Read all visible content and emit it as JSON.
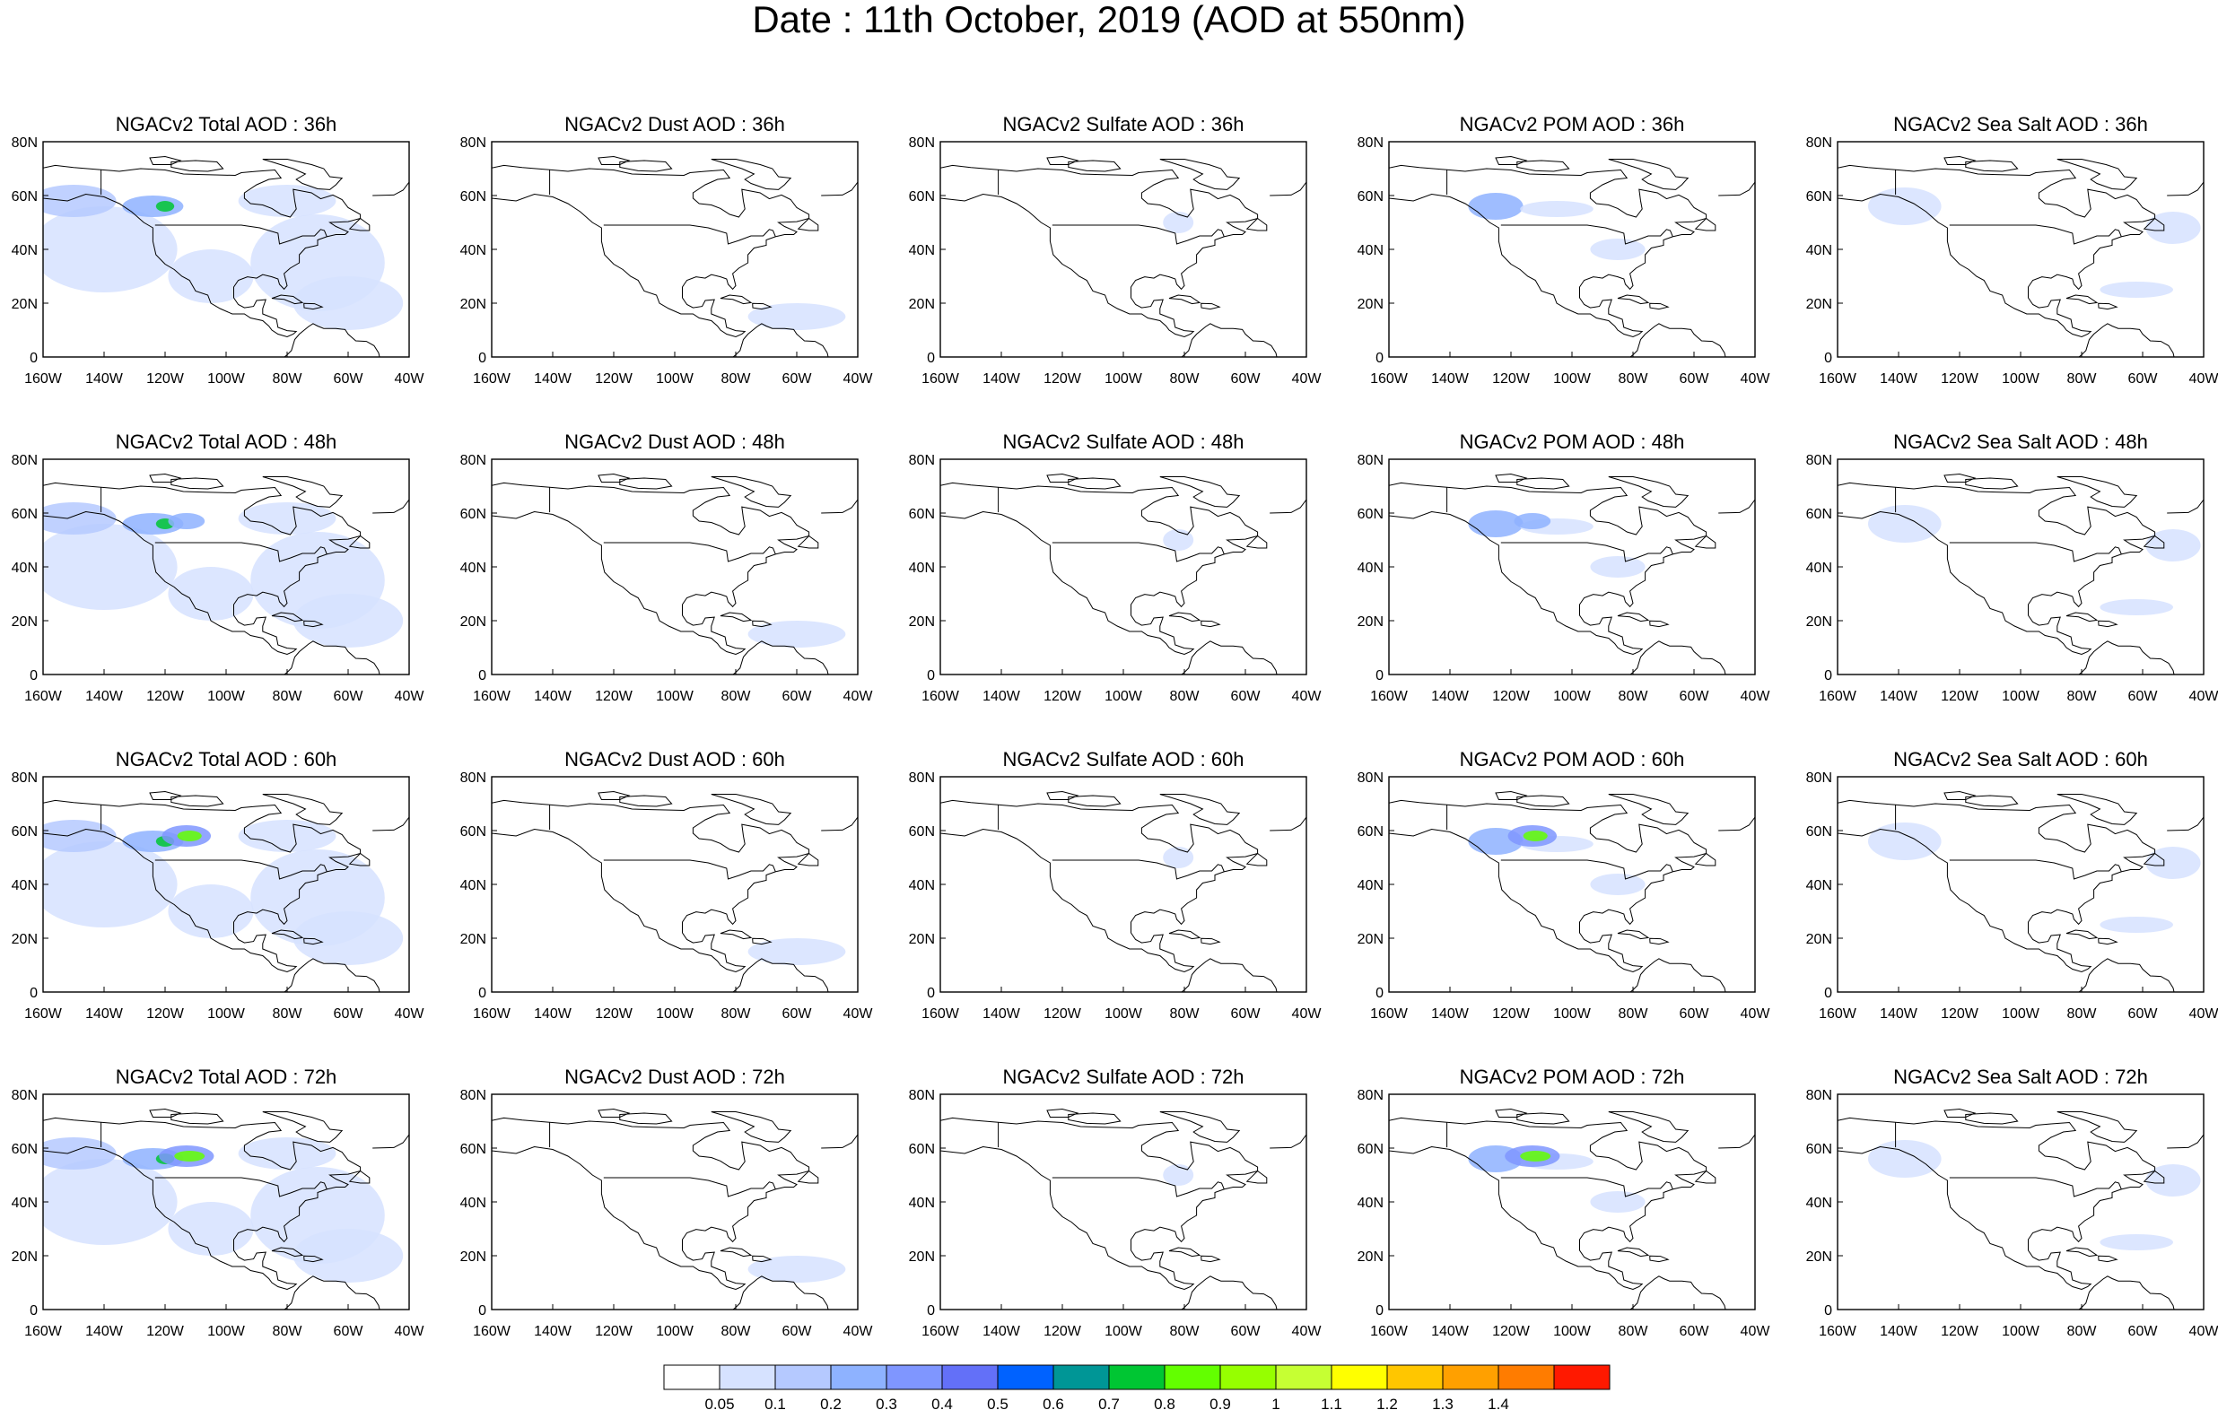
{
  "title": "Date : 11th October, 2019 (AOD at 550nm)",
  "panels": {
    "titles": [
      [
        "NGACv2 Total AOD : 36h",
        "NGACv2 Dust AOD : 36h",
        "NGACv2 Sulfate AOD : 36h",
        "NGACv2 POM AOD : 36h",
        "NGACv2 Sea Salt AOD : 36h"
      ],
      [
        "NGACv2 Total AOD : 48h",
        "NGACv2 Dust AOD : 48h",
        "NGACv2 Sulfate AOD : 48h",
        "NGACv2 POM AOD : 48h",
        "NGACv2 Sea Salt AOD : 48h"
      ],
      [
        "NGACv2 Total AOD : 60h",
        "NGACv2 Dust AOD : 60h",
        "NGACv2 Sulfate AOD : 60h",
        "NGACv2 POM AOD : 60h",
        "NGACv2 Sea Salt AOD : 60h"
      ],
      [
        "NGACv2 Total AOD : 72h",
        "NGACv2 Dust AOD : 72h",
        "NGACv2 Sulfate AOD : 72h",
        "NGACv2 POM AOD : 72h",
        "NGACv2 Sea Salt  AOD : 72h"
      ]
    ],
    "lat_labels": [
      "80N",
      "60N",
      "40N",
      "20N",
      "0"
    ],
    "lon_labels": [
      "160W",
      "140W",
      "120W",
      "100W",
      "80W",
      "60W",
      "40W"
    ],
    "extent": {
      "lon": [
        -160,
        -40
      ],
      "lat": [
        0,
        80
      ]
    }
  },
  "colorbar": {
    "colors": [
      "#ffffff",
      "#d6e2ff",
      "#b5c9ff",
      "#8eb2ff",
      "#7f96ff",
      "#6370f8",
      "#0062ff",
      "#009696",
      "#00c633",
      "#63ff00",
      "#96ff00",
      "#c6ff33",
      "#ffff00",
      "#ffc600",
      "#ffa000",
      "#ff7c00",
      "#ff1900"
    ],
    "labels": [
      "0.05",
      "0.1",
      "0.2",
      "0.3",
      "0.4",
      "0.5",
      "0.6",
      "0.7",
      "0.8",
      "0.9",
      "1",
      "1.1",
      "1.2",
      "1.3",
      "1.4"
    ]
  }
}
